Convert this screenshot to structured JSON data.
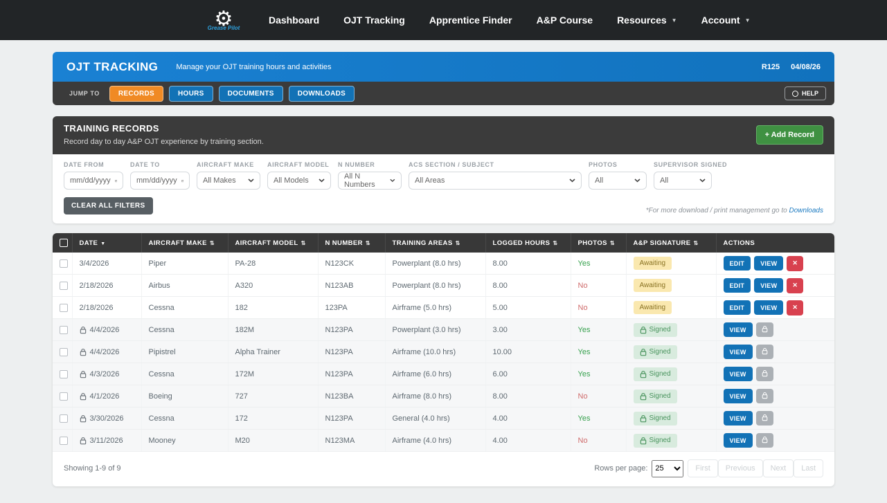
{
  "colors": {
    "nav_bg": "#222527",
    "banner_blue": "#1477C4",
    "bar_dark": "#3b3b3b",
    "tab_active_orange": "#F08A24",
    "tab_blue": "#1272B6",
    "add_green": "#3F9142",
    "btn_blue": "#1272B6",
    "btn_red": "#D8414F",
    "btn_gray": "#ABB0B5",
    "awaiting_bg": "#FAE8AF",
    "awaiting_text": "#8A7324",
    "signed_bg": "#D8EBDE",
    "signed_text": "#4A945E",
    "yes_green": "#35A04C",
    "no_red": "#CF6A6A",
    "brand_blue": "#2DA0DD"
  },
  "nav": {
    "logo_text": "Grease Pilot",
    "items": [
      {
        "label": "Dashboard",
        "dropdown": false
      },
      {
        "label": "OJT Tracking",
        "dropdown": false
      },
      {
        "label": "Apprentice Finder",
        "dropdown": false
      },
      {
        "label": "A&P Course",
        "dropdown": false
      },
      {
        "label": "Resources",
        "dropdown": true
      },
      {
        "label": "Account",
        "dropdown": true
      }
    ]
  },
  "banner": {
    "title": "OJT TRACKING",
    "subtitle": "Manage your OJT training hours and activities",
    "revision": "R125",
    "date": "04/08/26"
  },
  "jumpbar": {
    "label": "JUMP TO",
    "tabs": [
      {
        "label": "RECORDS",
        "active": true
      },
      {
        "label": "HOURS",
        "active": false
      },
      {
        "label": "DOCUMENTS",
        "active": false
      },
      {
        "label": "DOWNLOADS",
        "active": false
      }
    ],
    "help_label": "HELP"
  },
  "records_panel": {
    "title": "TRAINING RECORDS",
    "subtitle": "Record day to day A&P OJT experience by training section.",
    "add_button": "+ Add Record",
    "filters": [
      {
        "label": "DATE FROM",
        "type": "date",
        "value": "mm/dd/yyyy"
      },
      {
        "label": "DATE TO",
        "type": "date",
        "value": "mm/dd/yyyy"
      },
      {
        "label": "AIRCRAFT MAKE",
        "type": "select",
        "value": "All Makes"
      },
      {
        "label": "AIRCRAFT MODEL",
        "type": "select",
        "value": "All Models"
      },
      {
        "label": "N NUMBER",
        "type": "select",
        "value": "All N Numbers"
      },
      {
        "label": "ACS SECTION / SUBJECT",
        "type": "select",
        "value": "All Areas"
      },
      {
        "label": "PHOTOS",
        "type": "select",
        "value": "All"
      },
      {
        "label": "SUPERVISOR SIGNED",
        "type": "select",
        "value": "All"
      }
    ],
    "clear_button": "CLEAR ALL FILTERS",
    "note_prefix": "*For more download / print management go to ",
    "note_link": "Downloads"
  },
  "table": {
    "columns": [
      {
        "label": "DATE",
        "sort": "desc"
      },
      {
        "label": "AIRCRAFT MAKE",
        "sort": "both"
      },
      {
        "label": "AIRCRAFT MODEL",
        "sort": "both"
      },
      {
        "label": "N NUMBER",
        "sort": "both"
      },
      {
        "label": "TRAINING AREAS",
        "sort": "both"
      },
      {
        "label": "LOGGED HOURS",
        "sort": "both"
      },
      {
        "label": "PHOTOS",
        "sort": "both"
      },
      {
        "label": "A&P SIGNATURE",
        "sort": "both"
      },
      {
        "label": "ACTIONS",
        "sort": "none"
      }
    ],
    "rows": [
      {
        "date": "3/4/2026",
        "locked": false,
        "make": "Piper",
        "model": "PA-28",
        "n_number": "N123CK",
        "training_areas": "Powerplant (8.0 hrs)",
        "logged_hours": "8.00",
        "photos": "Yes",
        "signature": "Awaiting"
      },
      {
        "date": "2/18/2026",
        "locked": false,
        "make": "Airbus",
        "model": "A320",
        "n_number": "N123AB",
        "training_areas": "Powerplant (8.0 hrs)",
        "logged_hours": "8.00",
        "photos": "No",
        "signature": "Awaiting"
      },
      {
        "date": "2/18/2026",
        "locked": false,
        "make": "Cessna",
        "model": "182",
        "n_number": "123PA",
        "training_areas": "Airframe (5.0 hrs)",
        "logged_hours": "5.00",
        "photos": "No",
        "signature": "Awaiting"
      },
      {
        "date": "4/4/2026",
        "locked": true,
        "make": "Cessna",
        "model": "182M",
        "n_number": "N123PA",
        "training_areas": "Powerplant (3.0 hrs)",
        "logged_hours": "3.00",
        "photos": "Yes",
        "signature": "Signed"
      },
      {
        "date": "4/4/2026",
        "locked": true,
        "make": "Pipistrel",
        "model": "Alpha Trainer",
        "n_number": "N123PA",
        "training_areas": "Airframe (10.0 hrs)",
        "logged_hours": "10.00",
        "photos": "Yes",
        "signature": "Signed"
      },
      {
        "date": "4/3/2026",
        "locked": true,
        "make": "Cessna",
        "model": "172M",
        "n_number": "N123PA",
        "training_areas": "Airframe (6.0 hrs)",
        "logged_hours": "6.00",
        "photos": "Yes",
        "signature": "Signed"
      },
      {
        "date": "4/1/2026",
        "locked": true,
        "make": "Boeing",
        "model": "727",
        "n_number": "N123BA",
        "training_areas": "Airframe (8.0 hrs)",
        "logged_hours": "8.00",
        "photos": "No",
        "signature": "Signed"
      },
      {
        "date": "3/30/2026",
        "locked": true,
        "make": "Cessna",
        "model": "172",
        "n_number": "N123PA",
        "training_areas": "General (4.0 hrs)",
        "logged_hours": "4.00",
        "photos": "Yes",
        "signature": "Signed"
      },
      {
        "date": "3/11/2026",
        "locked": true,
        "make": "Mooney",
        "model": "M20",
        "n_number": "N123MA",
        "training_areas": "Airframe (4.0 hrs)",
        "logged_hours": "4.00",
        "photos": "No",
        "signature": "Signed"
      }
    ],
    "action_labels": {
      "edit": "EDIT",
      "view": "VIEW",
      "delete": "✕"
    },
    "footer": {
      "showing": "Showing 1-9 of 9",
      "rows_per_page_label": "Rows per page:",
      "rows_per_page_value": "25",
      "pager": [
        "First",
        "Previous",
        "Next",
        "Last"
      ]
    }
  }
}
